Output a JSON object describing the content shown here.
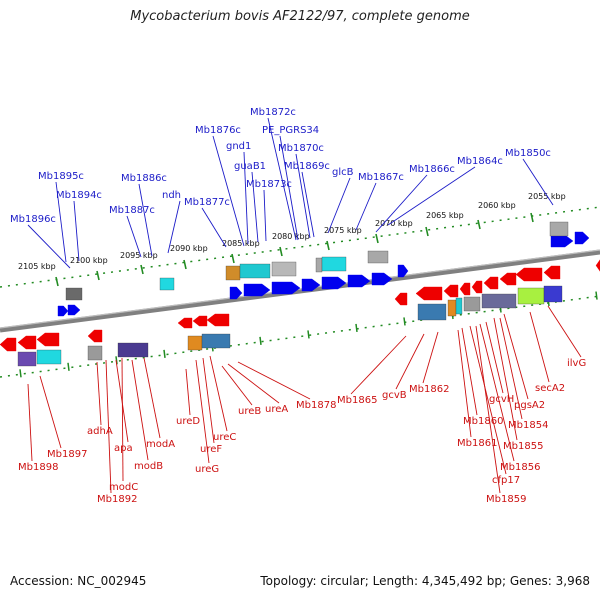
{
  "title": "Mycobacterium bovis AF2122/97, complete genome",
  "footer": {
    "accession": "Accession: NC_002945",
    "summary": "Topology: circular; Length: 4,345,492 bp; Genes: 3,968"
  },
  "colors": {
    "forward_gene": "#0000ee",
    "reverse_gene": "#ee0000",
    "top_label": "#1c1cc8",
    "bottom_label": "#cc1111",
    "tick": "#228b22",
    "backbone": "#808080"
  },
  "scale_ticks": [
    "2105 kbp",
    "2100 kbp",
    "2095 kbp",
    "2090 kbp",
    "2085 kbp",
    "2080 kbp",
    "2075 kbp",
    "2070 kbp",
    "2065 kbp",
    "2060 kbp",
    "2055 kbp"
  ],
  "top_labels": [
    "Mb1896c",
    "Mb1895c",
    "Mb1894c",
    "Mb1887c",
    "Mb1886c",
    "ndh",
    "Mb1877c",
    "Mb1876c",
    "gnd1",
    "guaB1",
    "Mb1873c",
    "Mb1872c",
    "PE_PGRS34",
    "Mb1870c",
    "Mb1869c",
    "glcB",
    "Mb1867c",
    "Mb1866c",
    "Mb1864c",
    "Mb1850c"
  ],
  "bottom_labels": [
    "Mb1898",
    "Mb1897",
    "Mb1892",
    "adhA",
    "apa",
    "modC",
    "modB",
    "modA",
    "ureD",
    "ureG",
    "ureF",
    "ureC",
    "ureB",
    "ureA",
    "Mb1878",
    "Mb1865",
    "gcvB",
    "Mb1862",
    "Mb1861",
    "Mb1860",
    "cfp17",
    "Mb1859",
    "Mb1856",
    "gcvH",
    "Mb1855",
    "Mb1854",
    "pgsA2",
    "secA2",
    "ilvG"
  ]
}
